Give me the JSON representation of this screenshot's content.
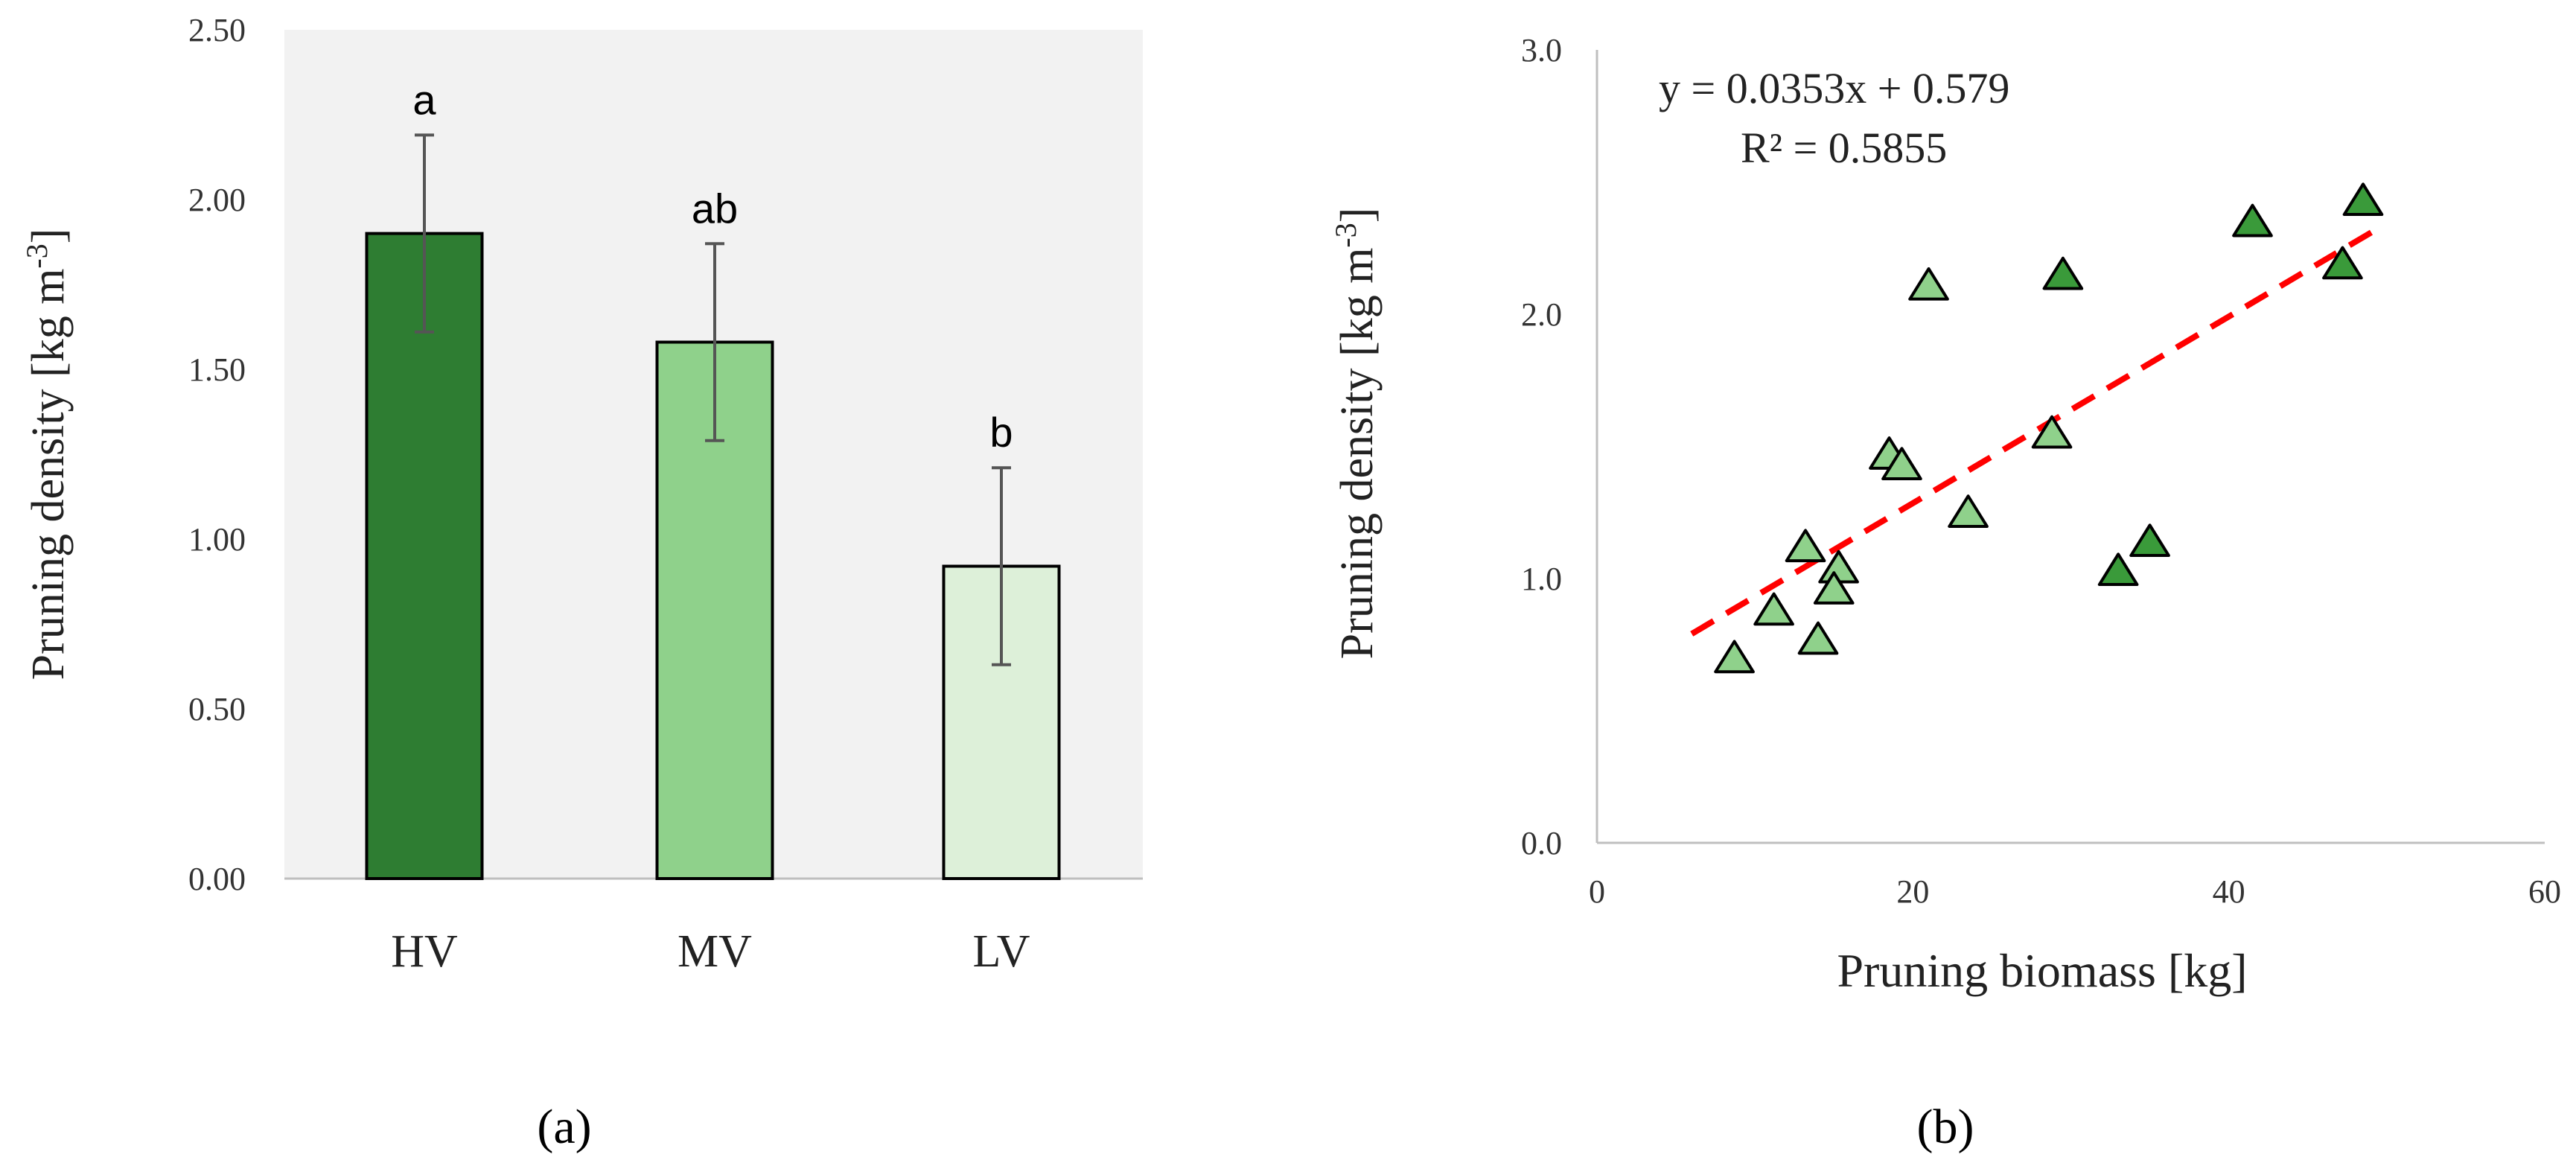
{
  "chart_data": [
    {
      "type": "bar",
      "panel_label": "(a)",
      "categories": [
        "HV",
        "MV",
        "LV"
      ],
      "values": [
        1.9,
        1.58,
        0.92
      ],
      "error_bars": [
        0.29,
        0.29,
        0.29
      ],
      "significance_letters": [
        "a",
        "ab",
        "b"
      ],
      "bar_colors": [
        "#2e7d32",
        "#8fd18b",
        "#ddf0d9"
      ],
      "ylabel": "Pruning density [kg m",
      "ylabel_sup": "-3",
      "ylabel_close": "]",
      "ylim": [
        0,
        2.5
      ],
      "yticks": [
        "0.00",
        "0.50",
        "1.00",
        "1.50",
        "2.00",
        "2.50"
      ],
      "background": "#f2f2f2",
      "grid": false
    },
    {
      "type": "scatter",
      "panel_label": "(b)",
      "xlabel": "Pruning biomass [kg]",
      "ylabel": "Pruning density [kg m",
      "ylabel_sup": "-3",
      "ylabel_close": "]",
      "xlim": [
        0,
        60
      ],
      "ylim": [
        0,
        3.0
      ],
      "xticks": [
        "0",
        "20",
        "40",
        "60"
      ],
      "yticks": [
        "0.0",
        "1.0",
        "2.0",
        "3.0"
      ],
      "series": [
        {
          "name": "dark",
          "color": "#3a9a3a",
          "x": [
            29.5,
            41.5,
            47.2,
            48.5,
            33.0,
            35.0
          ],
          "y": [
            2.15,
            2.35,
            2.19,
            2.43,
            1.03,
            1.14
          ]
        },
        {
          "name": "light",
          "color": "#8fd18b",
          "x": [
            21.0,
            18.5,
            19.3,
            28.8,
            23.5,
            13.2,
            15.3,
            11.2,
            15.0,
            8.7,
            14.0
          ],
          "y": [
            2.11,
            1.47,
            1.43,
            1.55,
            1.25,
            1.12,
            1.04,
            0.88,
            0.96,
            0.7,
            0.77
          ]
        }
      ],
      "trendline": {
        "equation": "y = 0.0353x + 0.579",
        "r2": "R² = 0.5855",
        "slope": 0.0353,
        "intercept": 0.579,
        "x_range": [
          6.0,
          49.5
        ],
        "color": "#ff0000"
      }
    }
  ]
}
